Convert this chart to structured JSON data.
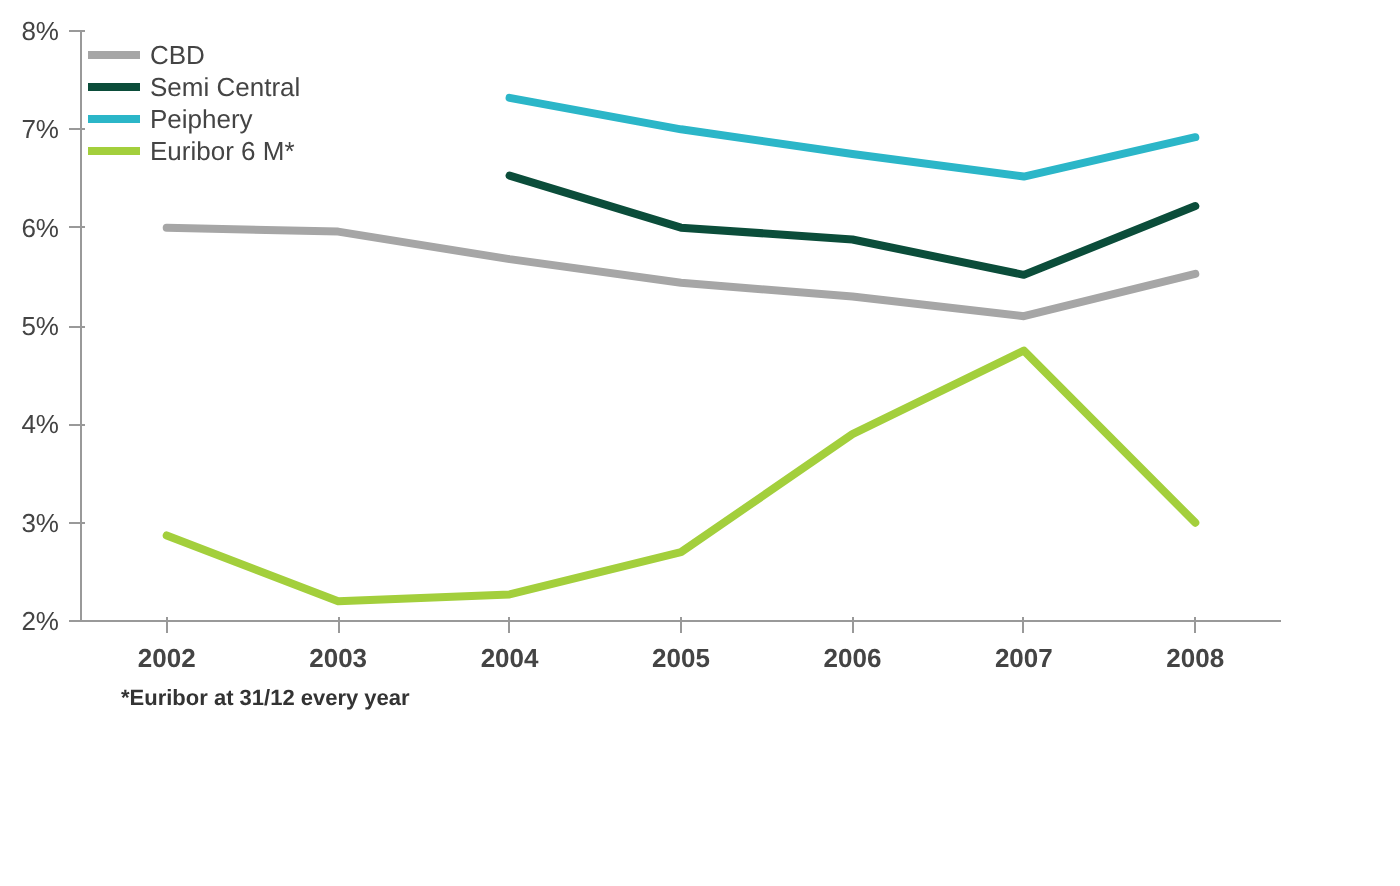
{
  "chart_data": {
    "type": "line",
    "categories": [
      "2002",
      "2003",
      "2004",
      "2005",
      "2006",
      "2007",
      "2008"
    ],
    "series": [
      {
        "name": "CBD",
        "color": "#a6a6a6",
        "values": [
          6.0,
          5.96,
          5.68,
          5.44,
          5.3,
          5.1,
          5.53
        ]
      },
      {
        "name": "Semi Central",
        "color": "#0b4d3a",
        "values": [
          null,
          null,
          6.53,
          6.0,
          5.88,
          5.52,
          6.22
        ]
      },
      {
        "name": "Peiphery",
        "color": "#2bb6c8",
        "values": [
          null,
          null,
          7.32,
          7.0,
          6.75,
          6.52,
          6.92
        ]
      },
      {
        "name": "Euribor 6 M*",
        "color": "#a3cf3c",
        "values": [
          2.87,
          2.2,
          2.27,
          2.7,
          3.9,
          4.75,
          3.0
        ]
      }
    ],
    "ylim": [
      2,
      8
    ],
    "yticks": [
      {
        "value": 2,
        "label": "2%"
      },
      {
        "value": 3,
        "label": "3%"
      },
      {
        "value": 4,
        "label": "4%"
      },
      {
        "value": 5,
        "label": "5%"
      },
      {
        "value": 6,
        "label": "6%"
      },
      {
        "value": 7,
        "label": "7%"
      },
      {
        "value": 8,
        "label": "8%"
      }
    ],
    "annotations": [
      "*Euribor at 31/12 every year"
    ],
    "grid": false,
    "legend": "top left",
    "marker": "none",
    "line_style": "solid"
  }
}
